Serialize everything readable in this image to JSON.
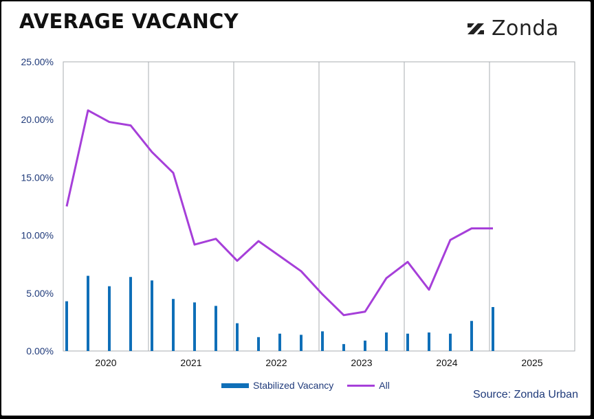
{
  "header": {
    "title": "AVERAGE VACANCY",
    "logo_text": "Zonda"
  },
  "source": "Source: Zonda Urban",
  "colors": {
    "bar": "#0f6fb8",
    "line": "#a63fd9",
    "grid": "#a9aeb2",
    "tick": "#1f3a7a"
  },
  "icons": {
    "logo": "zonda-mark-icon"
  },
  "chart_data": {
    "type": "bar",
    "title": "AVERAGE VACANCY",
    "xlabel": "",
    "ylabel": "",
    "ylim": [
      0,
      25
    ],
    "yticks": [
      "0.00%",
      "5.00%",
      "10.00%",
      "15.00%",
      "20.00%",
      "25.00%"
    ],
    "years": [
      "2020",
      "2021",
      "2022",
      "2023",
      "2024",
      "2025"
    ],
    "grid": "vertical year separators",
    "legend_position": "bottom",
    "x": [
      "2020 Q1",
      "2020 Q2",
      "2020 Q3",
      "2020 Q4",
      "2021 Q1",
      "2021 Q2",
      "2021 Q3",
      "2021 Q4",
      "2022 Q1",
      "2022 Q2",
      "2022 Q3",
      "2022 Q4",
      "2023 Q1",
      "2023 Q2",
      "2023 Q3",
      "2023 Q4",
      "2024 Q1",
      "2024 Q2",
      "2024 Q3",
      "2024 Q4",
      "2025 Q1"
    ],
    "series": [
      {
        "name": "Stabilized Vacancy",
        "type": "bar",
        "values": [
          4.3,
          6.5,
          5.6,
          6.4,
          6.1,
          4.5,
          4.2,
          3.9,
          2.4,
          1.2,
          1.5,
          1.4,
          1.7,
          0.6,
          0.9,
          1.6,
          1.5,
          1.6,
          1.5,
          2.6,
          3.8
        ]
      },
      {
        "name": "All",
        "type": "line",
        "values": [
          12.5,
          20.8,
          19.8,
          19.5,
          17.2,
          15.4,
          9.2,
          9.7,
          7.8,
          9.5,
          8.2,
          6.9,
          4.9,
          3.1,
          3.4,
          6.3,
          7.7,
          5.3,
          9.6,
          10.6,
          10.6
        ]
      }
    ]
  }
}
